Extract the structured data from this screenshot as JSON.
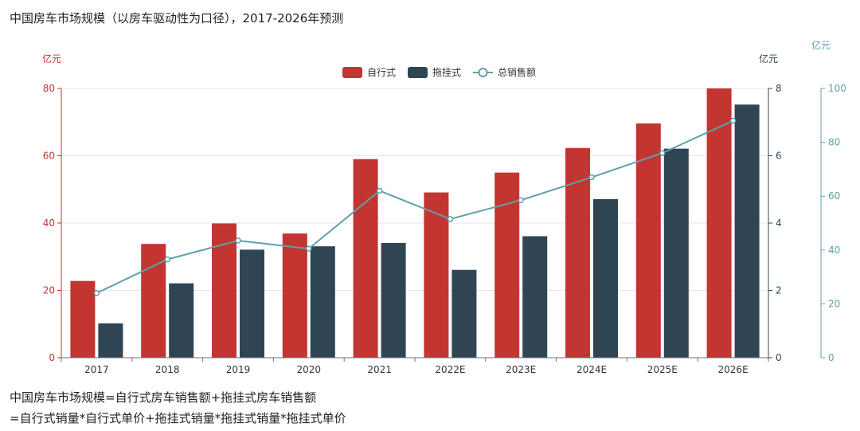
{
  "title": "中国房车市场规模（以房车驱动性为口径），2017-2026年预测",
  "notes": {
    "line1": "中国房车市场规模=自行式房车销售额+拖挂式房车销售额",
    "line2": "=自行式销量*自行式单价+拖挂式销量*拖挂式销量*拖挂式单价"
  },
  "colors": {
    "self_propelled": "#c23531",
    "towable": "#2f4554",
    "total": "#61a0a8",
    "axis_left": "#c23531",
    "axis_mid": "#2f4554",
    "axis_right": "#61a0a8",
    "text": "#333333"
  },
  "chart_data": {
    "type": "bar",
    "categories": [
      "2017",
      "2018",
      "2019",
      "2020",
      "2021",
      "2022E",
      "2023E",
      "2024E",
      "2025E",
      "2026E"
    ],
    "legend_position": "top-center",
    "grid": true,
    "series": [
      {
        "name": "自行式",
        "type": "bar",
        "axis": "left",
        "values": [
          22.8,
          33.8,
          39.9,
          36.9,
          59.0,
          49.1,
          55.0,
          62.3,
          69.6,
          80.0
        ]
      },
      {
        "name": "拖挂式",
        "type": "bar",
        "axis": "middle",
        "values": [
          1.02,
          2.21,
          3.21,
          3.31,
          3.41,
          2.61,
          3.61,
          4.71,
          6.21,
          7.52
        ]
      },
      {
        "name": "总销售额",
        "type": "line",
        "axis": "right",
        "values": [
          24.0,
          36.5,
          43.5,
          40.5,
          62.0,
          51.5,
          58.5,
          67.0,
          76.0,
          88.0
        ]
      }
    ],
    "axes": {
      "left": {
        "unit": "亿元",
        "ylim": [
          0,
          80
        ],
        "ticks": [
          0,
          20,
          40,
          60,
          80
        ]
      },
      "middle": {
        "unit": "亿元",
        "ylim": [
          0,
          8
        ],
        "ticks": [
          0,
          2,
          4,
          6,
          8
        ]
      },
      "right": {
        "unit": "亿元",
        "ylim": [
          0,
          100
        ],
        "ticks": [
          0,
          20,
          40,
          60,
          80,
          100
        ]
      }
    }
  }
}
